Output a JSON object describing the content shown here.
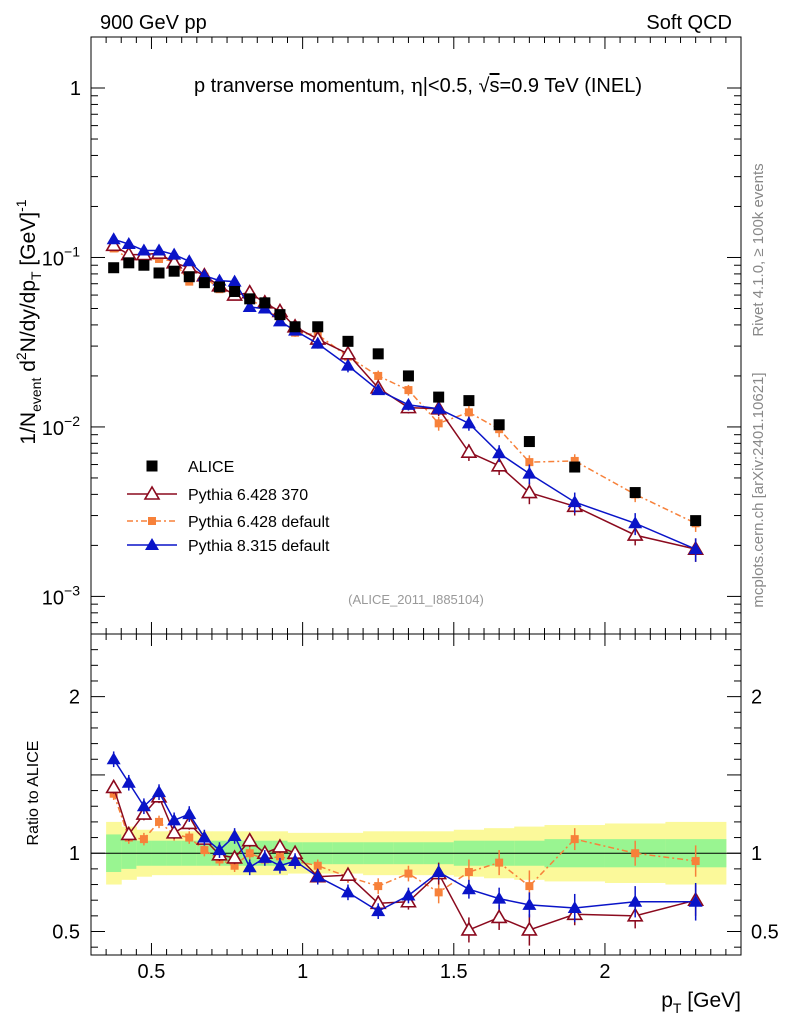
{
  "header": {
    "left": "900 GeV pp",
    "right": "Soft QCD"
  },
  "side_text": {
    "rivet": "Rivet 4.1.0, ≥ 100k events",
    "mcplots": "mcplots.cern.ch [arXiv:2401.10621]"
  },
  "main_title": {
    "part1": "p tranverse momentum, ",
    "eta": "η",
    "part2": "|<0.5, ",
    "root": "√",
    "s": "s",
    "part3": "=0.9 TeV (INEL)"
  },
  "analysis_id": "(ALICE_2011_I885104)",
  "y_axis_label": {
    "one_over_n": "1/N",
    "event": "event",
    "d2n": " d",
    "sup2": "2",
    "rest": "N/dy/dp",
    "T": "T",
    "unit": " [GeV]",
    "sup_minus1": "-1"
  },
  "ratio_axis_label": "Ratio to ALICE",
  "x_axis_label": {
    "p": "p",
    "T": "T",
    "unit": " [GeV]"
  },
  "colors": {
    "alice": "#000000",
    "py6_370": "#8b0a1e",
    "py6_default": "#f7813a",
    "py8": "#0a14c8",
    "band_inner": "#99f591",
    "band_outer": "#fbf99a"
  },
  "chart_data": {
    "type": "scatter",
    "x_range": [
      0.3,
      2.45
    ],
    "y_range_log": [
      0.0006,
      2.0
    ],
    "ratio_range": [
      0.35,
      2.4
    ],
    "x_ticks": [
      {
        "value": 0.5,
        "label": "0.5"
      },
      {
        "value": 1.0,
        "label": "1"
      },
      {
        "value": 1.5,
        "label": "1.5"
      },
      {
        "value": 2.0,
        "label": "2"
      }
    ],
    "y_ticks": [
      {
        "value": 1,
        "base": "1",
        "exp": ""
      },
      {
        "value": 0.1,
        "base": "10",
        "exp": "−1"
      },
      {
        "value": 0.01,
        "base": "10",
        "exp": "−2"
      },
      {
        "value": 0.001,
        "base": "10",
        "exp": "−3"
      }
    ],
    "ratio_ticks": [
      {
        "value": 0.5,
        "label": "0.5"
      },
      {
        "value": 1.0,
        "label": "1"
      },
      {
        "value": 2.0,
        "label": "2"
      }
    ],
    "x": [
      0.375,
      0.425,
      0.475,
      0.525,
      0.575,
      0.625,
      0.675,
      0.725,
      0.775,
      0.825,
      0.875,
      0.925,
      0.975,
      1.05,
      1.15,
      1.25,
      1.35,
      1.45,
      1.55,
      1.65,
      1.75,
      1.9,
      2.1,
      2.3
    ],
    "series": [
      {
        "name": "ALICE",
        "marker": "square",
        "values": [
          0.087,
          0.093,
          0.09,
          0.081,
          0.083,
          0.077,
          0.071,
          0.067,
          0.063,
          0.057,
          0.054,
          0.046,
          0.039,
          0.039,
          0.032,
          0.027,
          0.02,
          0.015,
          0.0143,
          0.0103,
          0.0082,
          0.0058,
          0.0041,
          0.0028
        ]
      },
      {
        "name": "Pythia 6.428 370",
        "marker": "open-triangle",
        "values": [
          0.118,
          0.104,
          0.104,
          0.106,
          0.093,
          0.087,
          0.078,
          0.068,
          0.06,
          0.062,
          0.054,
          0.048,
          0.039,
          0.033,
          0.027,
          0.017,
          0.013,
          0.0128,
          0.0071,
          0.0059,
          0.0041,
          0.0034,
          0.0023,
          0.0019
        ],
        "errors": [
          0.004,
          0.004,
          0.004,
          0.004,
          0.004,
          0.003,
          0.003,
          0.003,
          0.003,
          0.003,
          0.003,
          0.002,
          0.002,
          0.002,
          0.002,
          0.001,
          0.001,
          0.0012,
          0.0008,
          0.0007,
          0.0006,
          0.0004,
          0.0003,
          0.0003
        ],
        "ratio": [
          1.42,
          1.12,
          1.25,
          1.36,
          1.13,
          1.19,
          1.09,
          0.99,
          0.97,
          1.08,
          1.0,
          1.04,
          1.0,
          0.85,
          0.86,
          0.68,
          0.69,
          0.87,
          0.51,
          0.59,
          0.51,
          0.61,
          0.6,
          0.7
        ],
        "ratio_errors": [
          0.04,
          0.04,
          0.04,
          0.04,
          0.04,
          0.04,
          0.04,
          0.04,
          0.04,
          0.04,
          0.04,
          0.04,
          0.04,
          0.04,
          0.04,
          0.05,
          0.05,
          0.07,
          0.08,
          0.08,
          0.1,
          0.07,
          0.08,
          0.1
        ]
      },
      {
        "name": "Pythia 6.428 default",
        "marker": "small-square",
        "values": [
          0.113,
          0.098,
          0.098,
          0.098,
          0.095,
          0.072,
          0.077,
          0.065,
          0.06,
          0.057,
          0.05,
          0.043,
          0.036,
          0.035,
          0.026,
          0.02,
          0.0165,
          0.0105,
          0.0122,
          0.0097,
          0.0062,
          0.0063,
          0.004,
          0.0027
        ],
        "errors": [
          0.004,
          0.004,
          0.004,
          0.004,
          0.004,
          0.003,
          0.003,
          0.003,
          0.003,
          0.003,
          0.003,
          0.002,
          0.002,
          0.002,
          0.002,
          0.0015,
          0.0012,
          0.001,
          0.0011,
          0.001,
          0.0006,
          0.0006,
          0.0004,
          0.0003
        ],
        "ratio": [
          1.38,
          1.1,
          1.09,
          1.2,
          1.12,
          1.1,
          1.02,
          0.96,
          0.92,
          1.0,
          0.96,
          0.98,
          0.95,
          0.92,
          0.85,
          0.79,
          0.87,
          0.75,
          0.88,
          0.94,
          0.79,
          1.09,
          1.0,
          0.95
        ],
        "ratio_errors": [
          0.04,
          0.04,
          0.04,
          0.04,
          0.04,
          0.04,
          0.04,
          0.04,
          0.04,
          0.04,
          0.04,
          0.04,
          0.04,
          0.04,
          0.04,
          0.05,
          0.05,
          0.07,
          0.08,
          0.08,
          0.1,
          0.07,
          0.08,
          0.1
        ]
      },
      {
        "name": "Pythia 8.315 default",
        "marker": "filled-triangle",
        "values": [
          0.128,
          0.12,
          0.11,
          0.11,
          0.104,
          0.095,
          0.078,
          0.073,
          0.072,
          0.051,
          0.05,
          0.042,
          0.037,
          0.031,
          0.023,
          0.0165,
          0.0135,
          0.0128,
          0.0105,
          0.007,
          0.0053,
          0.0036,
          0.0027,
          0.0019
        ],
        "errors": [
          0.004,
          0.004,
          0.004,
          0.004,
          0.004,
          0.003,
          0.003,
          0.003,
          0.003,
          0.003,
          0.003,
          0.002,
          0.002,
          0.002,
          0.002,
          0.001,
          0.001,
          0.001,
          0.001,
          0.0008,
          0.0007,
          0.0005,
          0.0004,
          0.0003
        ],
        "ratio": [
          1.6,
          1.45,
          1.3,
          1.39,
          1.21,
          1.25,
          1.1,
          1.02,
          1.11,
          0.91,
          0.97,
          0.92,
          0.95,
          0.85,
          0.75,
          0.63,
          0.73,
          0.88,
          0.77,
          0.71,
          0.67,
          0.65,
          0.69,
          0.69
        ],
        "ratio_errors": [
          0.05,
          0.05,
          0.05,
          0.05,
          0.05,
          0.05,
          0.05,
          0.05,
          0.05,
          0.05,
          0.05,
          0.05,
          0.05,
          0.05,
          0.05,
          0.05,
          0.05,
          0.05,
          0.06,
          0.07,
          0.08,
          0.09,
          0.1,
          0.12
        ]
      }
    ],
    "band_edges": [
      0.35,
      0.4,
      0.45,
      0.5,
      0.55,
      0.6,
      0.65,
      0.7,
      0.75,
      0.8,
      0.85,
      0.9,
      0.95,
      1.0,
      1.1,
      1.2,
      1.3,
      1.4,
      1.5,
      1.6,
      1.7,
      1.8,
      2.0,
      2.2,
      2.4
    ],
    "band_inner_halfwidth": [
      0.12,
      0.1,
      0.08,
      0.08,
      0.08,
      0.08,
      0.08,
      0.08,
      0.08,
      0.08,
      0.08,
      0.08,
      0.07,
      0.07,
      0.07,
      0.07,
      0.07,
      0.07,
      0.08,
      0.08,
      0.08,
      0.09,
      0.09,
      0.09
    ],
    "band_outer_halfwidth": [
      0.2,
      0.17,
      0.15,
      0.14,
      0.14,
      0.14,
      0.14,
      0.14,
      0.14,
      0.14,
      0.14,
      0.14,
      0.13,
      0.13,
      0.13,
      0.14,
      0.14,
      0.14,
      0.15,
      0.16,
      0.17,
      0.18,
      0.19,
      0.2
    ]
  }
}
